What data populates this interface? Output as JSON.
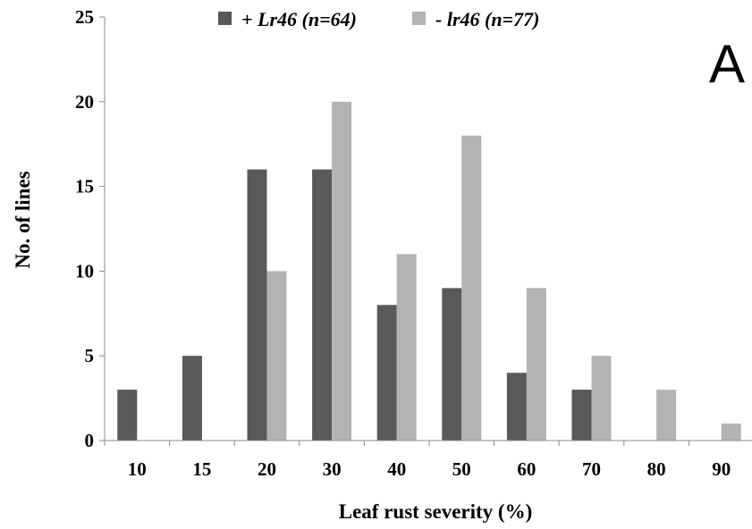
{
  "chart_data": {
    "type": "bar",
    "panel_label": "A",
    "xlabel": "Leaf rust severity (%)",
    "ylabel": "No. of lines",
    "ylim": [
      0,
      25
    ],
    "yticks": [
      "0",
      "5",
      "10",
      "15",
      "20",
      "25"
    ],
    "categories": [
      "10",
      "15",
      "20",
      "30",
      "40",
      "50",
      "60",
      "70",
      "80",
      "90"
    ],
    "legend_position": "top-center",
    "grid": false,
    "series": [
      {
        "name": "+ Lr46 (n=64)",
        "color": "#595959",
        "values": [
          3,
          5,
          16,
          16,
          8,
          9,
          4,
          3,
          0,
          0
        ]
      },
      {
        "name": "- lr46 (n=77)",
        "color": "#b3b3b3",
        "values": [
          0,
          0,
          10,
          20,
          11,
          18,
          9,
          5,
          3,
          1
        ]
      }
    ]
  }
}
